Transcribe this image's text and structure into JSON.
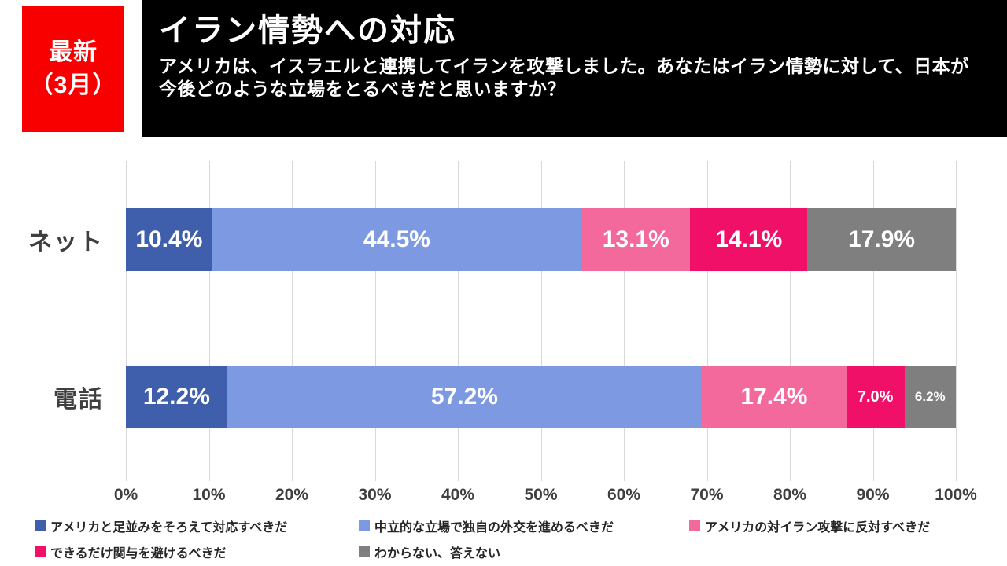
{
  "header": {
    "badge": {
      "line1": "最新",
      "line2": "（3月）",
      "bg": "#f80000",
      "fg": "#ffffff"
    },
    "title": "イラン情勢への対応",
    "subtitle_line1": "アメリカは、イスラエルと連携してイランを攻撃しました。あなたはイラン情勢に対して、日本が",
    "subtitle_line2": "今後どのような立場をとるべきだと思いますか？",
    "bg": "#000000",
    "fg": "#ffffff"
  },
  "chart_data": {
    "type": "bar",
    "orientation": "horizontal_stacked",
    "title": "イラン情勢への対応",
    "categories": [
      "ネット",
      "電話"
    ],
    "series": [
      {
        "name": "アメリカと足並みをそろえて対応すべきだ",
        "color": "#3f5fac",
        "values": [
          10.4,
          12.2
        ]
      },
      {
        "name": "中立的な立場で独自の外交を進めるべきだ",
        "color": "#7d99e2",
        "values": [
          44.5,
          57.2
        ]
      },
      {
        "name": "アメリカの対イラン攻撃に反対すべきだ",
        "color": "#f4699c",
        "values": [
          13.1,
          17.4
        ]
      },
      {
        "name": "できるだけ関与を避けるべきだ",
        "color": "#f01068",
        "values": [
          14.1,
          7.0
        ]
      },
      {
        "name": "わからない、答えない",
        "color": "#7f7f7f",
        "values": [
          17.9,
          6.2
        ]
      }
    ],
    "value_suffix": "%",
    "xlim": [
      0,
      100
    ],
    "x_ticks": [
      0,
      10,
      20,
      30,
      40,
      50,
      60,
      70,
      80,
      90,
      100
    ],
    "x_tick_suffix": "%",
    "grid": true,
    "gridline_color": "#d9d9d9",
    "bar_label_color": "#ffffff",
    "legend_position": "bottom",
    "legend_rows": [
      [
        0,
        1,
        2
      ],
      [
        3,
        4
      ]
    ]
  }
}
